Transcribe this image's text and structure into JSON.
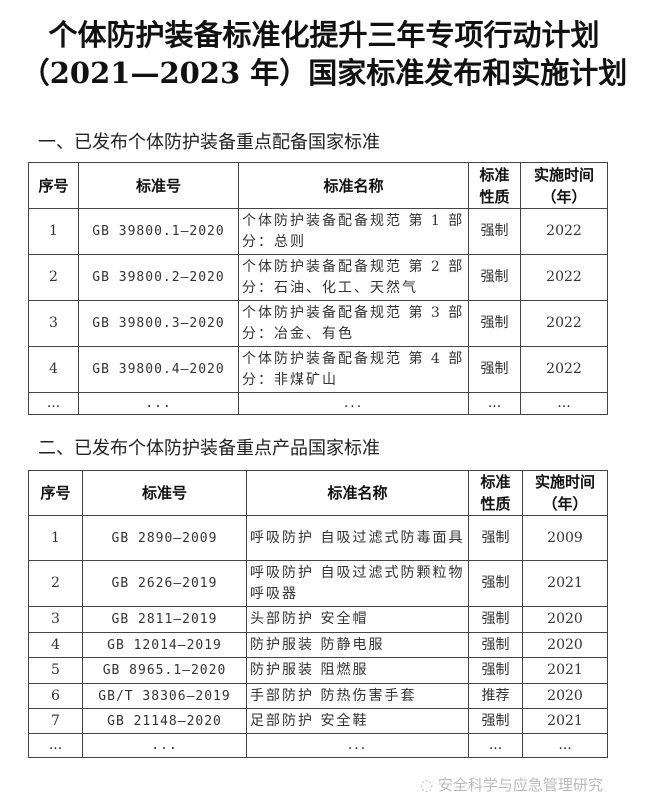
{
  "title": {
    "line1": "个体防护装备标准化提升三年专项行动计划",
    "line2": "（2021—2023 年）国家标准发布和实施计划"
  },
  "headers": {
    "seq": "序号",
    "code": "标准号",
    "name": "标准名称",
    "nature1": "标准",
    "nature2": "性质",
    "time1": "实施时间",
    "time2": "（年）"
  },
  "section1": {
    "heading": "一、已发布个体防护装备重点配备国家标准",
    "rows": [
      {
        "seq": "1",
        "code": "GB 39800.1—2020",
        "name": "个体防护装备配备规范 第 1 部分：总则",
        "nature": "强制",
        "year": "2022"
      },
      {
        "seq": "2",
        "code": "GB 39800.2—2020",
        "name": "个体防护装备配备规范 第 2 部分：石油、化工、天然气",
        "nature": "强制",
        "year": "2022"
      },
      {
        "seq": "3",
        "code": "GB 39800.3—2020",
        "name": "个体防护装备配备规范 第 3 部分：冶金、有色",
        "nature": "强制",
        "year": "2022"
      },
      {
        "seq": "4",
        "code": "GB 39800.4—2020",
        "name": "个体防护装备配备规范 第 4 部分：非煤矿山",
        "nature": "强制",
        "year": "2022"
      },
      {
        "seq": "...",
        "code": "...",
        "name": "...",
        "nature": "...",
        "year": "..."
      }
    ]
  },
  "section2": {
    "heading": "二、已发布个体防护装备重点产品国家标准",
    "rows": [
      {
        "seq": "1",
        "code": "GB 2890—2009",
        "name": "呼吸防护 自吸过滤式防毒面具",
        "nature": "强制",
        "year": "2009"
      },
      {
        "seq": "2",
        "code": "GB 2626—2019",
        "name": "呼吸防护 自吸过滤式防颗粒物呼吸器",
        "nature": "强制",
        "year": "2021"
      },
      {
        "seq": "3",
        "code": "GB 2811—2019",
        "name": "头部防护 安全帽",
        "nature": "强制",
        "year": "2020"
      },
      {
        "seq": "4",
        "code": "GB 12014—2019",
        "name": "防护服装 防静电服",
        "nature": "强制",
        "year": "2020"
      },
      {
        "seq": "5",
        "code": "GB 8965.1—2020",
        "name": "防护服装 阻燃服",
        "nature": "强制",
        "year": "2021"
      },
      {
        "seq": "6",
        "code": "GB/T 38306—2019",
        "name": "手部防护 防热伤害手套",
        "nature": "推荐",
        "year": "2020"
      },
      {
        "seq": "7",
        "code": "GB 21148—2020",
        "name": "足部防护 安全鞋",
        "nature": "强制",
        "year": "2021"
      },
      {
        "seq": "...",
        "code": "...",
        "name": "...",
        "nature": "...",
        "year": "..."
      }
    ]
  },
  "watermark": "安全科学与应急管理研究",
  "watermark_icon": "wechat-icon"
}
